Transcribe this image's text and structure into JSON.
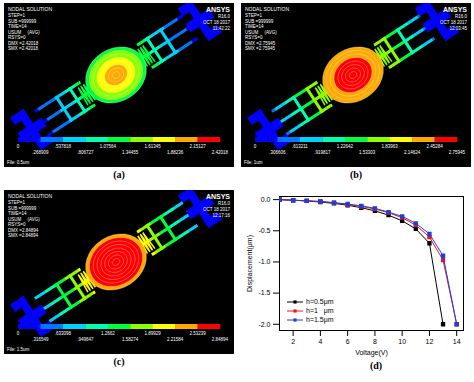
{
  "panels": [
    {
      "label": "(a)",
      "title": "NODAL SOLUTION",
      "info": [
        "STEP=1",
        "SUB =999999",
        "TIME=14",
        "USUM     (AVG)",
        "RSYS=0",
        "DMX =2.42018",
        "SMX =2.42018"
      ],
      "header": [
        "ANSYS",
        "R16.0",
        "OCT 18 2017",
        "11:42:22"
      ],
      "colorbar_labels": [
        "0",
        ".268909",
        ".537818",
        ".806727",
        "1.07564",
        "1.34455",
        "1.61345",
        "1.88236",
        "2.15127",
        "2.42018"
      ],
      "file": "File: 0.5um"
    },
    {
      "label": "(b)",
      "title": "NODAL SOLUTION",
      "info": [
        "STEP=1",
        "SUB =999999",
        "TIME=14",
        "USUM     (AVG)",
        "RSYS=0",
        "DMX =2.75945",
        "SMX =2.75945"
      ],
      "header": [
        "ANSYS",
        "R16.0",
        "OCT 18 2017",
        "12:03:45"
      ],
      "colorbar_labels": [
        "0",
        ".306606",
        ".613211",
        ".919817",
        "1.22642",
        "1.53303",
        "1.83963",
        "2.14624",
        "2.45284",
        "2.75945"
      ],
      "file": "File: 1um"
    },
    {
      "label": "(c)",
      "title": "NODAL SOLUTION",
      "info": [
        "STEP=1",
        "SUB =999999",
        "TIME=14",
        "USUM     (AVG)",
        "RSYS=0",
        "DMX =2.84894",
        "SMX =2.84894"
      ],
      "header": [
        "ANSYS",
        "R16.0",
        "OCT 18 2017",
        "12:17:16"
      ],
      "colorbar_labels": [
        "0",
        ".316549",
        ".633098",
        ".949647",
        "1.2662",
        "1.58274",
        "1.89929",
        "2.21584",
        "2.53239",
        "2.84894"
      ],
      "file": "File: 1.5um"
    }
  ],
  "chart_label": "(d)",
  "chart_data": {
    "type": "line",
    "x_label": "Voltage(V)",
    "y_label": "Displacement(μm)",
    "x": [
      1,
      2,
      3,
      4,
      5,
      6,
      7,
      8,
      9,
      10,
      11,
      12,
      13,
      14
    ],
    "series": [
      {
        "name": "h=0.5μm",
        "color": "#000000",
        "marker": "square",
        "values": [
          0,
          -0.01,
          -0.02,
          -0.04,
          -0.06,
          -0.09,
          -0.13,
          -0.18,
          -0.25,
          -0.34,
          -0.47,
          -0.7,
          -2.0,
          null
        ]
      },
      {
        "name": "h=1   μm",
        "color": "#e8161b",
        "marker": "square",
        "values": [
          0,
          -0.01,
          -0.02,
          -0.03,
          -0.05,
          -0.08,
          -0.11,
          -0.15,
          -0.21,
          -0.29,
          -0.41,
          -0.6,
          -0.97,
          -2.0
        ]
      },
      {
        "name": "h=1.5μm",
        "color": "#1f3fd8",
        "marker": "square",
        "values": [
          0,
          -0.01,
          -0.02,
          -0.03,
          -0.05,
          -0.07,
          -0.1,
          -0.14,
          -0.2,
          -0.27,
          -0.38,
          -0.55,
          -0.9,
          -2.0
        ]
      }
    ],
    "xlim": [
      1,
      14.5
    ],
    "xticks": [
      2,
      4,
      6,
      8,
      10,
      12,
      14
    ],
    "ylim": [
      -2.1,
      0.05
    ],
    "yticks": [
      {
        "value": 0,
        "label": "0.0"
      },
      -0.5,
      {
        "value": -1,
        "label": "-1.0"
      },
      -1.5,
      {
        "value": -2,
        "label": "-2.0"
      }
    ],
    "grid": false,
    "legend": "lower left"
  }
}
